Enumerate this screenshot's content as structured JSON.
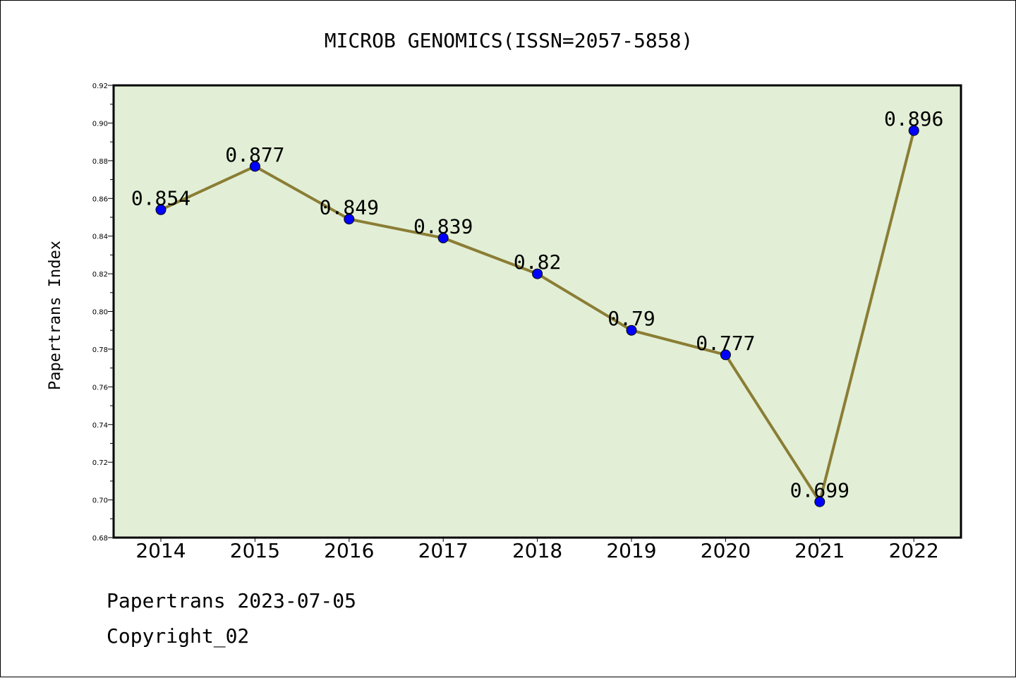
{
  "chart_data": {
    "type": "line",
    "title": "MICROB GENOMICS(ISSN=2057-5858)",
    "ylabel": "Papertrans Index",
    "xlabel": "",
    "categories": [
      "2014",
      "2015",
      "2016",
      "2017",
      "2018",
      "2019",
      "2020",
      "2021",
      "2022"
    ],
    "values": [
      0.854,
      0.877,
      0.849,
      0.839,
      0.82,
      0.79,
      0.777,
      0.699,
      0.896
    ],
    "data_labels": [
      "0.854",
      "0.877",
      "0.849",
      "0.839",
      "0.82",
      "0.79",
      "0.777",
      "0.699",
      "0.896"
    ],
    "ylim": [
      0.68,
      0.92
    ],
    "yticks": [
      "0.68",
      "0.70",
      "0.72",
      "0.74",
      "0.76",
      "0.78",
      "0.80",
      "0.82",
      "0.84",
      "0.86",
      "0.88",
      "0.90",
      "0.92"
    ],
    "grid": false,
    "colors": {
      "plot_background": "#e2efd6",
      "line": "#8b7d35",
      "marker": "#0000ff"
    }
  },
  "footer": {
    "line1": "Papertrans 2023-07-05",
    "line2": "Copyright_02"
  }
}
